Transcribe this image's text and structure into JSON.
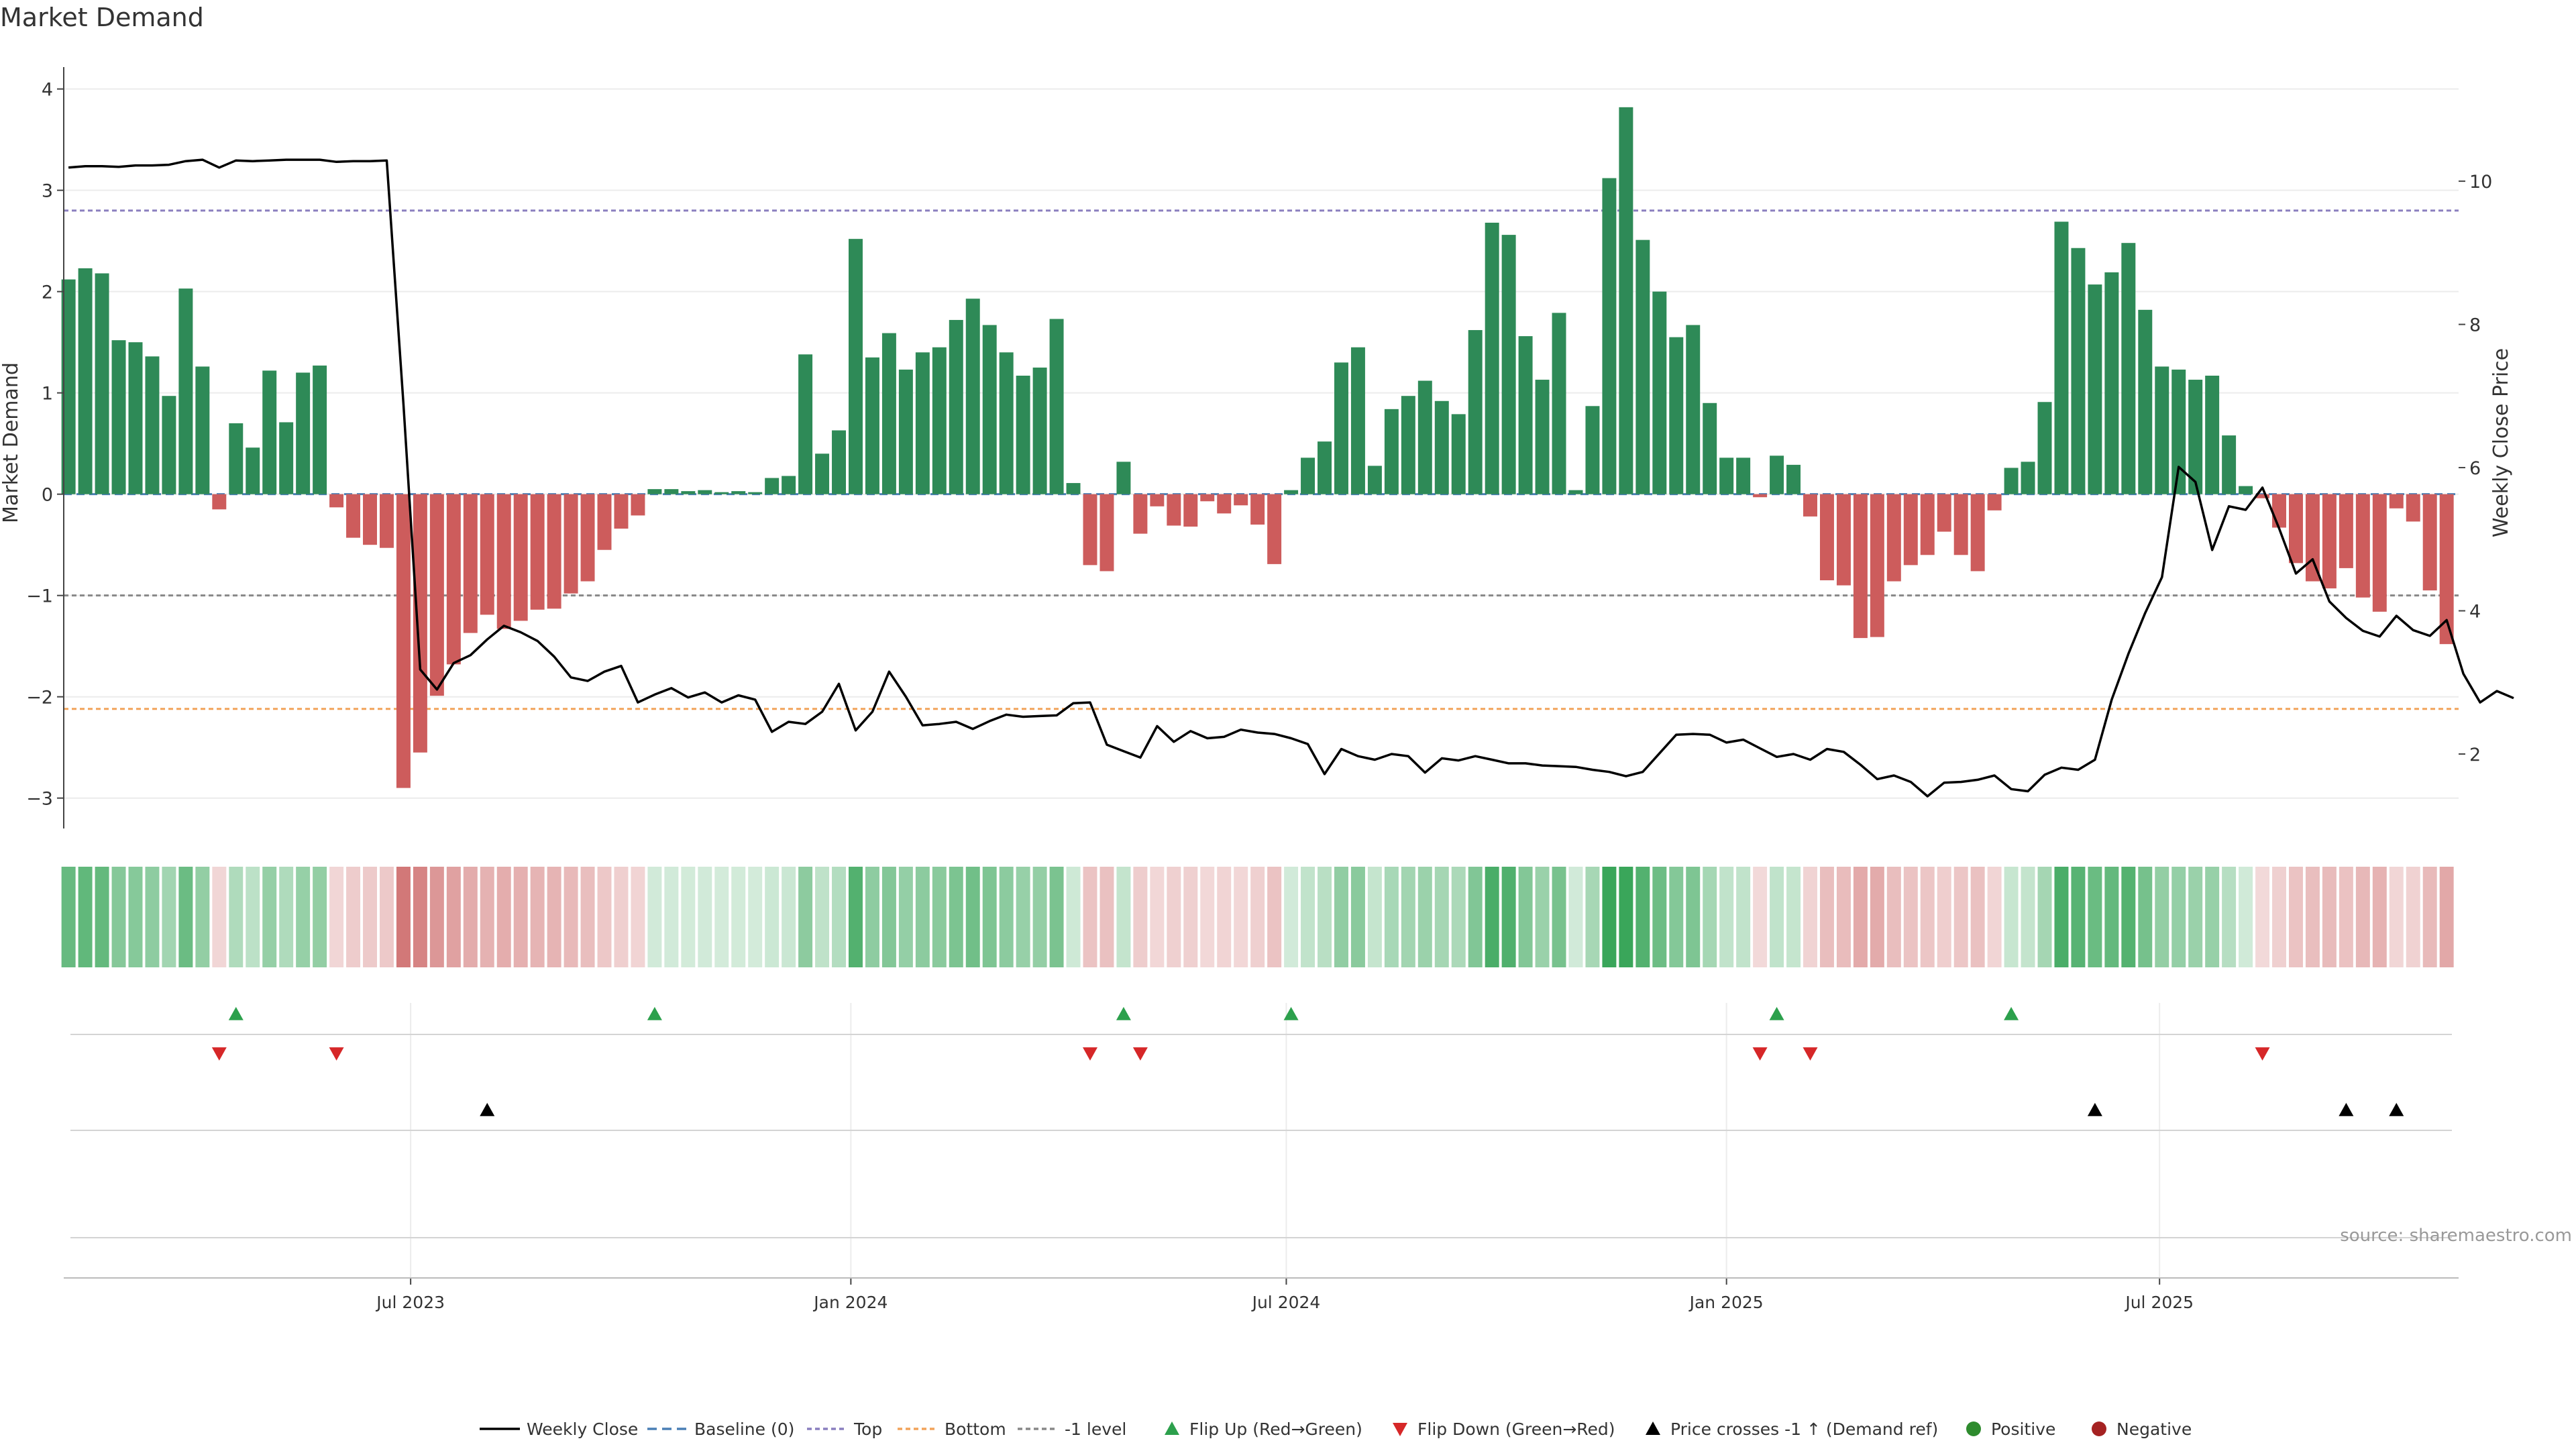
{
  "chart_data": {
    "type": "bar",
    "title": "Market Demand",
    "ylabel": "Market Demand",
    "y2label": "Weekly Close Price",
    "ylim": [
      -3.3,
      4.15
    ],
    "y2lim": [
      0.96,
      11.5
    ],
    "yticks": [
      4,
      3,
      2,
      1,
      0,
      -1,
      -2,
      -3
    ],
    "y2ticks": [
      10,
      8,
      6,
      4,
      2
    ],
    "xlim": [
      "2023-02-06",
      "2025-11-03"
    ],
    "xticks": [
      {
        "date": "2023-07-01",
        "label": "Jul 2023"
      },
      {
        "date": "2024-01-01",
        "label": "Jan 2024"
      },
      {
        "date": "2024-07-01",
        "label": "Jul 2024"
      },
      {
        "date": "2025-01-01",
        "label": "Jan 2025"
      },
      {
        "date": "2025-07-01",
        "label": "Jul 2025"
      }
    ],
    "start_week": "2023-02-08",
    "reference_lines": [
      {
        "name": "Top",
        "value": 2.8,
        "color": "#8a7fbf"
      },
      {
        "name": "Bottom",
        "value": -2.12,
        "color": "#f2a35a"
      },
      {
        "name": "-1 level",
        "value": -1.0,
        "color": "#888888"
      }
    ],
    "series": [
      {
        "name": "Market Demand",
        "type": "bar",
        "values": [
          2.12,
          2.23,
          2.18,
          1.52,
          1.5,
          1.36,
          0.97,
          2.03,
          1.26,
          -0.15,
          0.7,
          0.46,
          1.22,
          0.71,
          1.2,
          1.27,
          -0.13,
          -0.43,
          -0.5,
          -0.53,
          -2.9,
          -2.55,
          -1.99,
          -1.68,
          -1.37,
          -1.19,
          -1.33,
          -1.25,
          -1.14,
          -1.13,
          -0.98,
          -0.86,
          -0.55,
          -0.34,
          -0.21,
          0.05,
          0.05,
          0.03,
          0.04,
          0.02,
          0.03,
          0.02,
          0.16,
          0.18,
          1.38,
          0.4,
          0.63,
          2.52,
          1.35,
          1.59,
          1.23,
          1.4,
          1.45,
          1.72,
          1.93,
          1.67,
          1.4,
          1.17,
          1.25,
          1.73,
          0.11,
          -0.7,
          -0.76,
          0.32,
          -0.39,
          -0.12,
          -0.31,
          -0.32,
          -0.07,
          -0.19,
          -0.11,
          -0.3,
          -0.69,
          0.04,
          0.36,
          0.52,
          1.3,
          1.45,
          0.28,
          0.84,
          0.97,
          1.12,
          0.92,
          0.79,
          1.62,
          2.68,
          2.56,
          1.56,
          1.13,
          1.79,
          0.04,
          0.87,
          3.12,
          3.82,
          2.51,
          2.0,
          1.55,
          1.67,
          0.9,
          0.36,
          0.36,
          -0.03,
          0.38,
          0.29,
          -0.22,
          -0.85,
          -0.9,
          -1.42,
          -1.41,
          -0.86,
          -0.7,
          -0.6,
          -0.37,
          -0.6,
          -0.76,
          -0.16,
          0.26,
          0.32,
          0.91,
          2.69,
          2.43,
          2.07,
          2.19,
          2.48,
          1.82,
          1.26,
          1.23,
          1.13,
          1.17,
          0.58,
          0.08,
          -0.04,
          -0.33,
          -0.68,
          -0.86,
          -0.93,
          -0.73,
          -1.02,
          -1.16,
          -0.14,
          -0.27,
          -0.95,
          -1.48
        ]
      },
      {
        "name": "Weekly Close",
        "type": "line",
        "axis": "right",
        "values": [
          10.19,
          10.21,
          10.21,
          10.2,
          10.22,
          10.22,
          10.23,
          10.28,
          10.3,
          10.19,
          10.29,
          10.28,
          10.29,
          10.3,
          10.3,
          10.3,
          10.27,
          10.28,
          10.28,
          10.29,
          6.89,
          3.18,
          2.9,
          3.27,
          3.38,
          3.6,
          3.79,
          3.7,
          3.58,
          3.36,
          3.07,
          3.02,
          3.15,
          3.23,
          2.72,
          2.83,
          2.92,
          2.79,
          2.86,
          2.72,
          2.82,
          2.76,
          2.31,
          2.45,
          2.42,
          2.59,
          2.98,
          2.33,
          2.59,
          3.15,
          2.8,
          2.4,
          2.42,
          2.45,
          2.35,
          2.46,
          2.55,
          2.52,
          2.53,
          2.54,
          2.71,
          2.72,
          2.13,
          2.04,
          1.95,
          2.39,
          2.17,
          2.32,
          2.22,
          2.24,
          2.34,
          2.3,
          2.28,
          2.22,
          2.14,
          1.72,
          2.07,
          1.97,
          1.92,
          2.0,
          1.97,
          1.74,
          1.94,
          1.91,
          1.97,
          1.92,
          1.87,
          1.87,
          1.84,
          1.83,
          1.82,
          1.78,
          1.75,
          1.69,
          1.75,
          2.01,
          2.27,
          2.28,
          2.27,
          2.16,
          2.2,
          2.08,
          1.96,
          2.0,
          1.92,
          2.07,
          2.03,
          1.85,
          1.65,
          1.7,
          1.61,
          1.41,
          1.6,
          1.61,
          1.64,
          1.7,
          1.51,
          1.48,
          1.71,
          1.81,
          1.78,
          1.92,
          2.76,
          3.4,
          3.97,
          4.47,
          6.01,
          5.8,
          4.85,
          5.46,
          5.41,
          5.72,
          5.15,
          4.52,
          4.72,
          4.13,
          3.9,
          3.72,
          3.64,
          3.93,
          3.73,
          3.65,
          3.87,
          3.12,
          2.72,
          2.88,
          2.78
        ]
      }
    ],
    "flip_up_weeks": [
      10,
      35,
      63,
      73,
      102,
      116
    ],
    "flip_down_weeks": [
      9,
      16,
      61,
      64,
      101,
      104,
      131
    ],
    "price_cross_weeks": [
      25,
      121,
      136,
      139
    ],
    "legend": [
      "Weekly Close",
      "Baseline (0)",
      "Top",
      "Bottom",
      "-1 level",
      "Flip Up (Red→Green)",
      "Flip Down (Green→Red)",
      "Price crosses -1 ↑ (Demand ref)",
      "Positive",
      "Negative"
    ],
    "legend_placement": "bottom-center",
    "colors": {
      "positive_bar": "#2e8a57",
      "negative_bar": "#cd5c5c",
      "price_line": "#000000",
      "baseline": "#4a7fb5",
      "flip_up": "#2ca04c",
      "flip_down": "#d62728",
      "price_cross": "#000000",
      "positive_dot": "#2e8b2e",
      "negative_dot": "#a52222"
    },
    "source": "source: sharemaestro.com",
    "grid": true
  }
}
